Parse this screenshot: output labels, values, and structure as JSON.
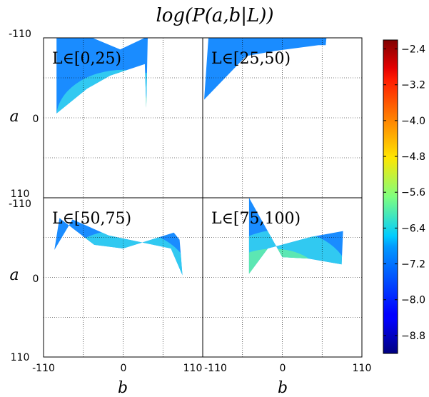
{
  "chart_data": {
    "type": "heatmap",
    "title": "log(P(a,b|L))",
    "xlabel": "b",
    "ylabel": "a",
    "xlim": [
      -110,
      110
    ],
    "ylim": [
      110,
      -110
    ],
    "x_tick_labels": [
      "-110",
      "0",
      "110"
    ],
    "y_tick_labels": [
      "-110",
      "0",
      "110"
    ],
    "grid": true,
    "panels": [
      {
        "label": "L∈[0,25)"
      },
      {
        "label": "L∈[25,50)"
      },
      {
        "label": "L∈[50,75)"
      },
      {
        "label": "L∈[75,100)"
      }
    ],
    "colorbar": {
      "min": -9.2,
      "max": -2.2,
      "ticks": [
        -2.4,
        -3.2,
        -4.0,
        -4.8,
        -5.6,
        -6.4,
        -7.2,
        -8.0,
        -8.8
      ],
      "tick_labels": [
        "−2.4",
        "−3.2",
        "−4.0",
        "−4.8",
        "−5.6",
        "−6.4",
        "−7.2",
        "−8.0",
        "−8.8"
      ]
    },
    "colors": {
      "colormap": "jet",
      "panel_border": "#000000",
      "grid": "#000000"
    }
  }
}
